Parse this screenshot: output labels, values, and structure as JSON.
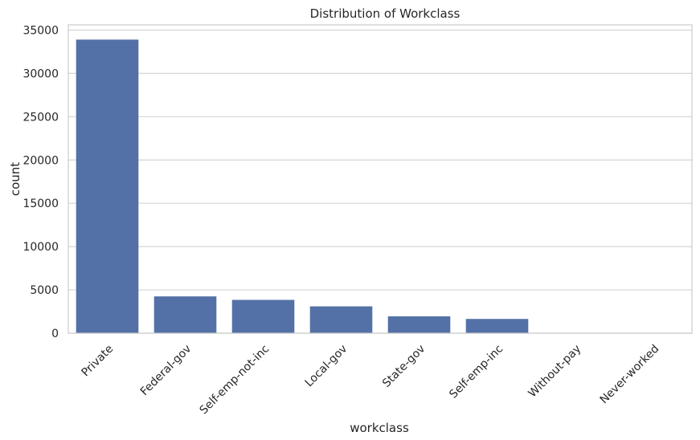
{
  "chart_data": {
    "type": "bar",
    "title": "Distribution of Workclass",
    "xlabel": "workclass",
    "ylabel": "count",
    "categories": [
      "Private",
      "Federal-gov",
      "Self-emp-not-inc",
      "Local-gov",
      "State-gov",
      "Self-emp-inc",
      "Without-pay",
      "Never-worked"
    ],
    "values": [
      33900,
      4250,
      3850,
      3100,
      1950,
      1650,
      20,
      10
    ],
    "ylim": [
      0,
      35600
    ],
    "yticks": [
      0,
      5000,
      10000,
      15000,
      20000,
      25000,
      30000,
      35000
    ],
    "ytick_labels": [
      "0",
      "5000",
      "10000",
      "15000",
      "20000",
      "25000",
      "30000",
      "35000"
    ],
    "grid": true,
    "bar_color": "#5471a7",
    "grid_color": "#d5d5d5",
    "frame_color": "#cccccc"
  }
}
